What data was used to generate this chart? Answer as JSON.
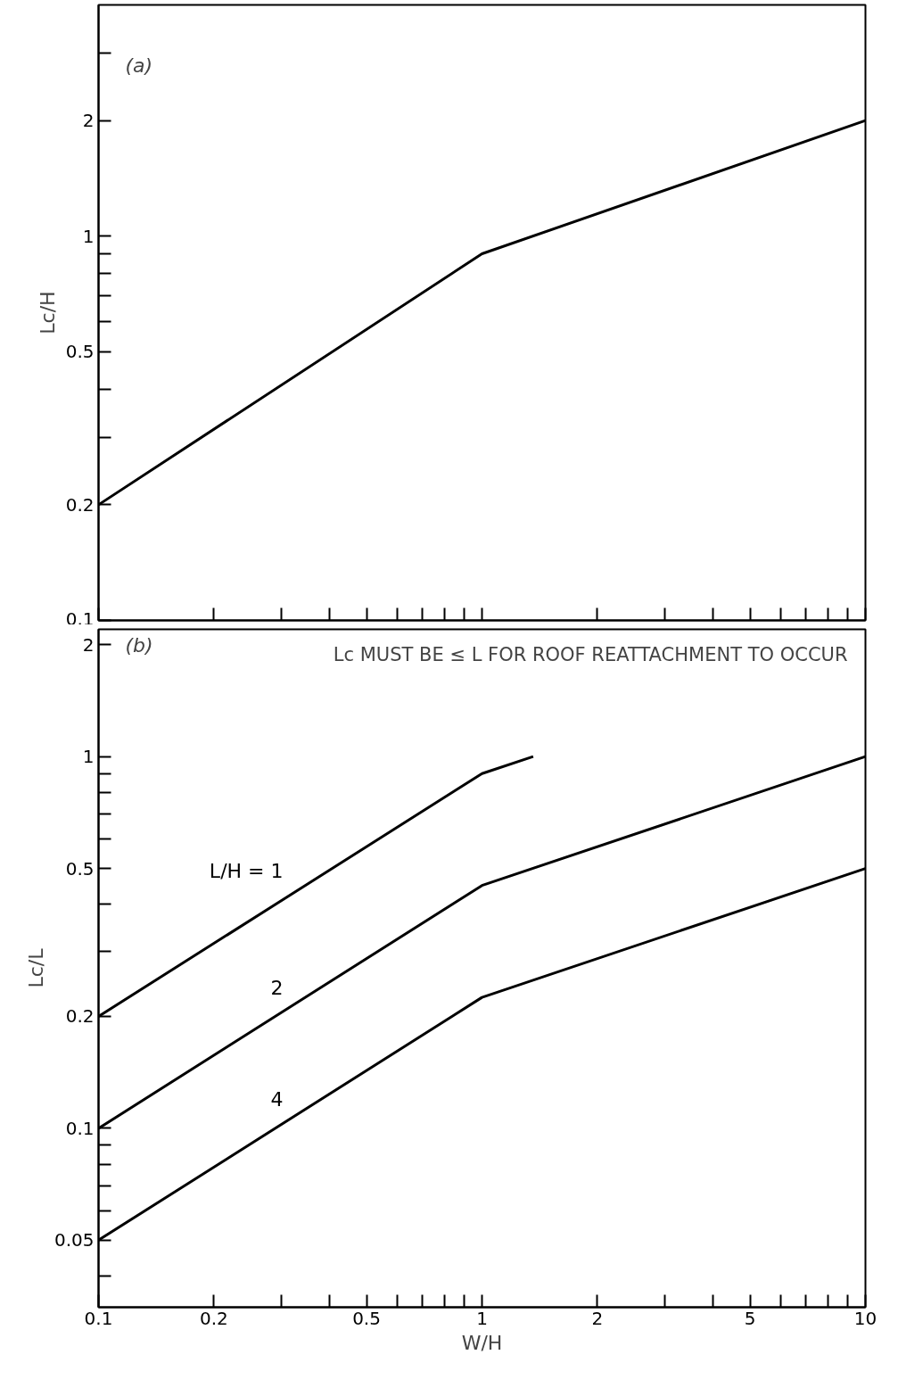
{
  "chart_data": [
    {
      "type": "line",
      "ylabel": "Lc/H",
      "annotations": [
        "(a)"
      ],
      "log": "xy",
      "grid": false,
      "tick_labels": "y",
      "line_style": "solid",
      "marker": "none",
      "xlim": [
        0.1,
        10
      ],
      "ylim": [
        0.1,
        4
      ],
      "xticks": [
        0.1,
        0.2,
        {
          "value": 0.3,
          "label": null
        },
        {
          "value": 0.4,
          "label": null
        },
        0.5,
        {
          "value": 0.6,
          "label": null
        },
        {
          "value": 0.7,
          "label": null
        },
        {
          "value": 0.8,
          "label": null
        },
        {
          "value": 0.9,
          "label": null
        },
        1,
        2,
        {
          "value": 3,
          "label": null
        },
        {
          "value": 4,
          "label": null
        },
        5,
        {
          "value": 6,
          "label": null
        },
        {
          "value": 7,
          "label": null
        },
        {
          "value": 8,
          "label": null
        },
        {
          "value": 9,
          "label": null
        },
        10
      ],
      "yticks": [
        0.1,
        0.2,
        {
          "value": 0.3,
          "label": null
        },
        {
          "value": 0.4,
          "label": null
        },
        0.5,
        {
          "value": 0.6,
          "label": null
        },
        {
          "value": 0.7,
          "label": null
        },
        {
          "value": 0.8,
          "label": null
        },
        {
          "value": 0.9,
          "label": null
        },
        1,
        2,
        {
          "value": 3,
          "label": null
        }
      ],
      "series": [
        {
          "color": "#000000",
          "x": [
            0.1,
            1,
            10
          ],
          "values": [
            0.2,
            0.9,
            2.0
          ]
        }
      ]
    },
    {
      "type": "line",
      "xlabel": "W/H",
      "ylabel": "Lc/L",
      "annotations": [
        "(b)",
        "Lc MUST BE ≤ L FOR ROOF REATTACHMENT TO OCCUR"
      ],
      "log": "xy",
      "grid": false,
      "line_style": "solid",
      "marker": "none",
      "xlim": [
        0.1,
        10
      ],
      "ylim": [
        0.033,
        2.2
      ],
      "xticks": [
        0.1,
        0.2,
        {
          "value": 0.3,
          "label": null
        },
        {
          "value": 0.4,
          "label": null
        },
        0.5,
        {
          "value": 0.6,
          "label": null
        },
        {
          "value": 0.7,
          "label": null
        },
        {
          "value": 0.8,
          "label": null
        },
        {
          "value": 0.9,
          "label": null
        },
        1,
        2,
        {
          "value": 3,
          "label": null
        },
        {
          "value": 4,
          "label": null
        },
        5,
        {
          "value": 6,
          "label": null
        },
        {
          "value": 7,
          "label": null
        },
        {
          "value": 8,
          "label": null
        },
        {
          "value": 9,
          "label": null
        },
        10
      ],
      "yticks": [
        {
          "value": 0.04,
          "label": null
        },
        0.05,
        {
          "value": 0.06,
          "label": null
        },
        {
          "value": 0.07,
          "label": null
        },
        {
          "value": 0.08,
          "label": null
        },
        {
          "value": 0.09,
          "label": null
        },
        0.1,
        0.2,
        {
          "value": 0.3,
          "label": null
        },
        {
          "value": 0.4,
          "label": null
        },
        0.5,
        {
          "value": 0.6,
          "label": null
        },
        {
          "value": 0.7,
          "label": null
        },
        {
          "value": 0.8,
          "label": null
        },
        {
          "value": 0.9,
          "label": null
        },
        1,
        2
      ],
      "series": [
        {
          "name": "L/H = 1",
          "color": "#000000",
          "x": [
            0.1,
            1,
            1.36
          ],
          "values": [
            0.2,
            0.9,
            1.0
          ]
        },
        {
          "name": "2",
          "color": "#000000",
          "x": [
            0.1,
            1,
            10
          ],
          "values": [
            0.1,
            0.45,
            1.0
          ]
        },
        {
          "name": "4",
          "color": "#000000",
          "x": [
            0.1,
            1,
            10
          ],
          "values": [
            0.05,
            0.225,
            0.5
          ]
        }
      ]
    }
  ]
}
